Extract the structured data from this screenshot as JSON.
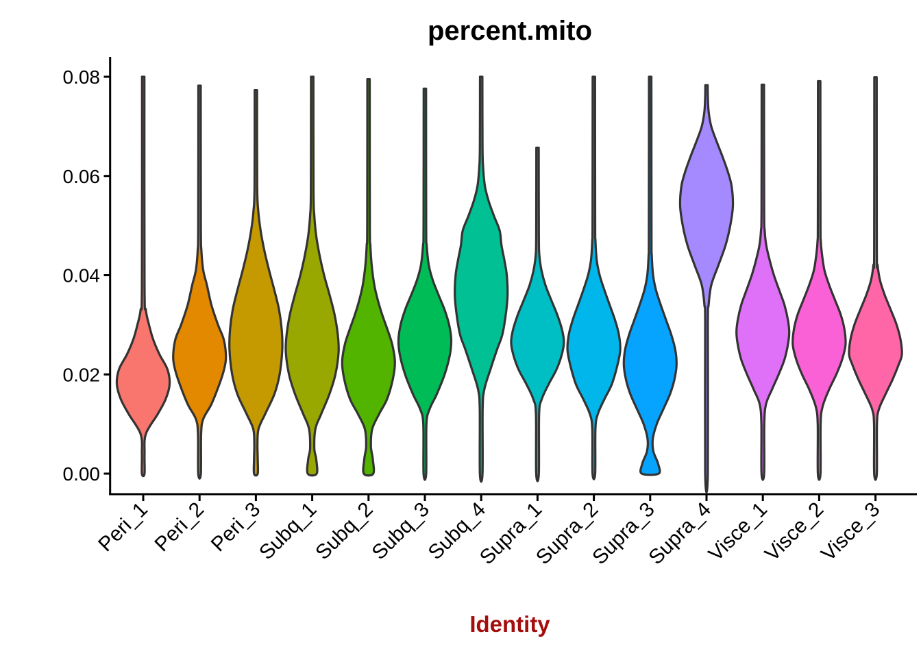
{
  "title": "percent.mito",
  "x_axis": {
    "label": "Identity",
    "label_color": "#A50D0D"
  },
  "y_axis": {
    "tick_labels": [
      "0.00",
      "0.02",
      "0.04",
      "0.06",
      "0.08"
    ],
    "range": [
      0,
      0.08
    ]
  },
  "chart_data": {
    "type": "violin",
    "title": "percent.mito",
    "xlabel": "Identity",
    "ylabel": "",
    "ylim": [
      0,
      0.08
    ],
    "yticks": [
      0.0,
      0.02,
      0.04,
      0.06,
      0.08
    ],
    "grid": false,
    "legend": "none",
    "background": "#FFFFFF",
    "outline_color": "#333333",
    "categories": [
      "Peri_1",
      "Peri_2",
      "Peri_3",
      "Subq_1",
      "Subq_2",
      "Subq_3",
      "Subq_4",
      "Supra_1",
      "Supra_2",
      "Supra_3",
      "Supra_4",
      "Visce_1",
      "Visce_2",
      "Visce_3"
    ],
    "colors": [
      "#F8766D",
      "#E38900",
      "#C49A00",
      "#99A800",
      "#53B400",
      "#00BC56",
      "#00C094",
      "#00BFC4",
      "#00B6EB",
      "#06A4FF",
      "#A58AFF",
      "#DF70F8",
      "#FB61D7",
      "#FF66A8"
    ],
    "violins": [
      {
        "name": "Peri_1",
        "color": "#F8766D",
        "min": 0.0,
        "max": 0.08,
        "peak": 0.018,
        "profile": [
          [
            0,
            0.05
          ],
          [
            0.004,
            0.05
          ],
          [
            0.008,
            0.1
          ],
          [
            0.012,
            0.55
          ],
          [
            0.015,
            0.85
          ],
          [
            0.018,
            1.0
          ],
          [
            0.021,
            0.92
          ],
          [
            0.024,
            0.62
          ],
          [
            0.027,
            0.38
          ],
          [
            0.03,
            0.22
          ],
          [
            0.033,
            0.1
          ],
          [
            0.038,
            0.05
          ],
          [
            0.08,
            0.045
          ]
        ]
      },
      {
        "name": "Peri_2",
        "color": "#E38900",
        "min": 0.0,
        "max": 0.0782,
        "peak": 0.0235,
        "profile": [
          [
            0,
            0.05
          ],
          [
            0.008,
            0.06
          ],
          [
            0.011,
            0.14
          ],
          [
            0.014,
            0.45
          ],
          [
            0.018,
            0.75
          ],
          [
            0.021,
            0.93
          ],
          [
            0.0235,
            1.0
          ],
          [
            0.027,
            0.92
          ],
          [
            0.03,
            0.7
          ],
          [
            0.034,
            0.45
          ],
          [
            0.038,
            0.28
          ],
          [
            0.041,
            0.14
          ],
          [
            0.045,
            0.07
          ],
          [
            0.05,
            0.05
          ],
          [
            0.0782,
            0.045
          ]
        ]
      },
      {
        "name": "Peri_3",
        "color": "#C49A00",
        "min": 0.0,
        "max": 0.0773,
        "peak": 0.025,
        "profile": [
          [
            0,
            0.07
          ],
          [
            0.003,
            0.07
          ],
          [
            0.006,
            0.06
          ],
          [
            0.009,
            0.1
          ],
          [
            0.012,
            0.35
          ],
          [
            0.016,
            0.7
          ],
          [
            0.02,
            0.9
          ],
          [
            0.025,
            1.0
          ],
          [
            0.029,
            0.98
          ],
          [
            0.033,
            0.88
          ],
          [
            0.037,
            0.7
          ],
          [
            0.041,
            0.5
          ],
          [
            0.045,
            0.32
          ],
          [
            0.049,
            0.18
          ],
          [
            0.053,
            0.09
          ],
          [
            0.058,
            0.05
          ],
          [
            0.0773,
            0.045
          ]
        ]
      },
      {
        "name": "Subq_1",
        "color": "#99A800",
        "min": 0.0,
        "max": 0.08,
        "peak": 0.0245,
        "profile": [
          [
            0,
            0.17
          ],
          [
            0.003,
            0.15
          ],
          [
            0.005,
            0.08
          ],
          [
            0.009,
            0.12
          ],
          [
            0.012,
            0.34
          ],
          [
            0.016,
            0.65
          ],
          [
            0.02,
            0.88
          ],
          [
            0.0245,
            1.0
          ],
          [
            0.028,
            0.97
          ],
          [
            0.032,
            0.85
          ],
          [
            0.036,
            0.66
          ],
          [
            0.04,
            0.45
          ],
          [
            0.044,
            0.28
          ],
          [
            0.048,
            0.15
          ],
          [
            0.052,
            0.08
          ],
          [
            0.057,
            0.05
          ],
          [
            0.08,
            0.045
          ]
        ]
      },
      {
        "name": "Subq_2",
        "color": "#53B400",
        "min": 0.0,
        "max": 0.0795,
        "peak": 0.0225,
        "profile": [
          [
            0,
            0.18
          ],
          [
            0.003,
            0.16
          ],
          [
            0.0055,
            0.09
          ],
          [
            0.009,
            0.14
          ],
          [
            0.012,
            0.4
          ],
          [
            0.015,
            0.7
          ],
          [
            0.019,
            0.92
          ],
          [
            0.0225,
            1.0
          ],
          [
            0.026,
            0.9
          ],
          [
            0.029,
            0.72
          ],
          [
            0.032,
            0.52
          ],
          [
            0.035,
            0.35
          ],
          [
            0.038,
            0.22
          ],
          [
            0.042,
            0.12
          ],
          [
            0.046,
            0.07
          ],
          [
            0.05,
            0.05
          ],
          [
            0.0795,
            0.045
          ]
        ]
      },
      {
        "name": "Subq_3",
        "color": "#00BC56",
        "min": 0.0,
        "max": 0.0776,
        "peak": 0.027,
        "profile": [
          [
            0,
            0.05
          ],
          [
            0.01,
            0.06
          ],
          [
            0.013,
            0.18
          ],
          [
            0.016,
            0.45
          ],
          [
            0.02,
            0.75
          ],
          [
            0.024,
            0.95
          ],
          [
            0.027,
            1.0
          ],
          [
            0.03,
            0.92
          ],
          [
            0.033,
            0.75
          ],
          [
            0.036,
            0.52
          ],
          [
            0.039,
            0.3
          ],
          [
            0.042,
            0.15
          ],
          [
            0.046,
            0.07
          ],
          [
            0.05,
            0.05
          ],
          [
            0.0776,
            0.045
          ]
        ]
      },
      {
        "name": "Subq_4",
        "color": "#00C094",
        "min": 0.0,
        "max": 0.08,
        "peak": 0.036,
        "profile": [
          [
            0,
            0.05
          ],
          [
            0.013,
            0.055
          ],
          [
            0.017,
            0.12
          ],
          [
            0.021,
            0.35
          ],
          [
            0.025,
            0.6
          ],
          [
            0.028,
            0.8
          ],
          [
            0.032,
            0.93
          ],
          [
            0.036,
            1.0
          ],
          [
            0.04,
            0.97
          ],
          [
            0.043,
            0.88
          ],
          [
            0.046,
            0.77
          ],
          [
            0.049,
            0.7
          ],
          [
            0.052,
            0.48
          ],
          [
            0.055,
            0.28
          ],
          [
            0.058,
            0.14
          ],
          [
            0.062,
            0.07
          ],
          [
            0.066,
            0.05
          ],
          [
            0.08,
            0.045
          ]
        ]
      },
      {
        "name": "Supra_1",
        "color": "#00BFC4",
        "min": 0.0,
        "max": 0.0657,
        "peak": 0.0265,
        "profile": [
          [
            0,
            0.05
          ],
          [
            0.012,
            0.06
          ],
          [
            0.015,
            0.16
          ],
          [
            0.018,
            0.42
          ],
          [
            0.021,
            0.72
          ],
          [
            0.024,
            0.92
          ],
          [
            0.0265,
            1.0
          ],
          [
            0.029,
            0.93
          ],
          [
            0.032,
            0.75
          ],
          [
            0.035,
            0.52
          ],
          [
            0.038,
            0.3
          ],
          [
            0.041,
            0.15
          ],
          [
            0.044,
            0.07
          ],
          [
            0.048,
            0.05
          ],
          [
            0.0657,
            0.045
          ]
        ]
      },
      {
        "name": "Supra_2",
        "color": "#00B6EB",
        "min": 0.0,
        "max": 0.08,
        "peak": 0.025,
        "profile": [
          [
            0,
            0.05
          ],
          [
            0.009,
            0.06
          ],
          [
            0.012,
            0.15
          ],
          [
            0.015,
            0.4
          ],
          [
            0.018,
            0.68
          ],
          [
            0.022,
            0.9
          ],
          [
            0.025,
            1.0
          ],
          [
            0.028,
            0.95
          ],
          [
            0.031,
            0.8
          ],
          [
            0.034,
            0.6
          ],
          [
            0.037,
            0.4
          ],
          [
            0.04,
            0.22
          ],
          [
            0.043,
            0.11
          ],
          [
            0.047,
            0.06
          ],
          [
            0.051,
            0.05
          ],
          [
            0.08,
            0.045
          ]
        ]
      },
      {
        "name": "Supra_3",
        "color": "#06A4FF",
        "min": 0.0,
        "max": 0.08,
        "peak": 0.022,
        "profile": [
          [
            0,
            0.32
          ],
          [
            0.002,
            0.3
          ],
          [
            0.0045,
            0.12
          ],
          [
            0.007,
            0.1
          ],
          [
            0.01,
            0.25
          ],
          [
            0.013,
            0.5
          ],
          [
            0.016,
            0.75
          ],
          [
            0.019,
            0.92
          ],
          [
            0.022,
            1.0
          ],
          [
            0.025,
            0.95
          ],
          [
            0.028,
            0.8
          ],
          [
            0.031,
            0.6
          ],
          [
            0.034,
            0.4
          ],
          [
            0.037,
            0.22
          ],
          [
            0.04,
            0.11
          ],
          [
            0.044,
            0.06
          ],
          [
            0.048,
            0.05
          ],
          [
            0.08,
            0.045
          ]
        ]
      },
      {
        "name": "Supra_4",
        "color": "#A58AFF",
        "min": 0.0,
        "max": 0.0783,
        "peak": 0.054,
        "profile": [
          [
            0,
            0.05
          ],
          [
            0.03,
            0.05
          ],
          [
            0.034,
            0.08
          ],
          [
            0.038,
            0.18
          ],
          [
            0.042,
            0.45
          ],
          [
            0.046,
            0.72
          ],
          [
            0.05,
            0.9
          ],
          [
            0.054,
            1.0
          ],
          [
            0.058,
            0.95
          ],
          [
            0.061,
            0.8
          ],
          [
            0.064,
            0.6
          ],
          [
            0.067,
            0.38
          ],
          [
            0.07,
            0.18
          ],
          [
            0.073,
            0.08
          ],
          [
            0.076,
            0.05
          ],
          [
            0.0783,
            0.045
          ]
        ]
      },
      {
        "name": "Visce_1",
        "color": "#DF70F8",
        "min": 0.0,
        "max": 0.0784,
        "peak": 0.0285,
        "profile": [
          [
            0,
            0.05
          ],
          [
            0.01,
            0.055
          ],
          [
            0.014,
            0.12
          ],
          [
            0.017,
            0.35
          ],
          [
            0.02,
            0.6
          ],
          [
            0.023,
            0.82
          ],
          [
            0.026,
            0.95
          ],
          [
            0.0285,
            1.0
          ],
          [
            0.031,
            0.95
          ],
          [
            0.034,
            0.82
          ],
          [
            0.037,
            0.62
          ],
          [
            0.04,
            0.42
          ],
          [
            0.043,
            0.26
          ],
          [
            0.046,
            0.13
          ],
          [
            0.049,
            0.07
          ],
          [
            0.053,
            0.05
          ],
          [
            0.0784,
            0.045
          ]
        ]
      },
      {
        "name": "Visce_2",
        "color": "#FB61D7",
        "min": 0.0,
        "max": 0.0791,
        "peak": 0.026,
        "profile": [
          [
            0,
            0.05
          ],
          [
            0.01,
            0.055
          ],
          [
            0.0135,
            0.13
          ],
          [
            0.017,
            0.38
          ],
          [
            0.02,
            0.65
          ],
          [
            0.023,
            0.87
          ],
          [
            0.026,
            1.0
          ],
          [
            0.029,
            0.96
          ],
          [
            0.032,
            0.82
          ],
          [
            0.035,
            0.6
          ],
          [
            0.038,
            0.38
          ],
          [
            0.041,
            0.2
          ],
          [
            0.0445,
            0.1
          ],
          [
            0.047,
            0.06
          ],
          [
            0.051,
            0.05
          ],
          [
            0.0791,
            0.045
          ]
        ]
      },
      {
        "name": "Visce_3",
        "color": "#FF66A8",
        "min": 0.0,
        "max": 0.0799,
        "peak": 0.024,
        "profile": [
          [
            0,
            0.05
          ],
          [
            0.01,
            0.055
          ],
          [
            0.013,
            0.13
          ],
          [
            0.016,
            0.38
          ],
          [
            0.019,
            0.65
          ],
          [
            0.022,
            0.88
          ],
          [
            0.024,
            1.0
          ],
          [
            0.027,
            0.95
          ],
          [
            0.03,
            0.8
          ],
          [
            0.033,
            0.58
          ],
          [
            0.036,
            0.35
          ],
          [
            0.039,
            0.17
          ],
          [
            0.042,
            0.08
          ],
          [
            0.045,
            0.05
          ],
          [
            0.0799,
            0.045
          ]
        ]
      }
    ]
  }
}
